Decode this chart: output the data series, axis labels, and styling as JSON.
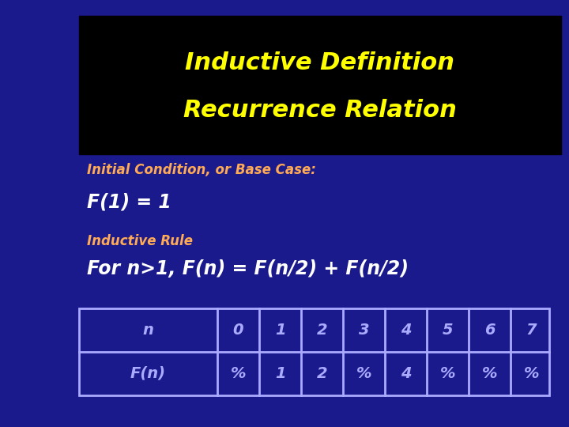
{
  "bg_color": "#1a1a8c",
  "title_bg_color": "#000000",
  "title_text_line1": "Inductive Definition",
  "title_text_line2": "Recurrence Relation",
  "title_color": "#ffff00",
  "subtitle1": "Initial Condition, or Base Case:",
  "subtitle1_color": "#ffaa55",
  "line1": "F(1) = 1",
  "line1_color": "#ffffff",
  "subtitle2": "Inductive Rule",
  "subtitle2_color": "#ffaa55",
  "line2": "For n>1, F(n) = F(n/2) + F(n/2)",
  "line2_color": "#ffffff",
  "table_row1": [
    "n",
    "0",
    "1",
    "2",
    "3",
    "4",
    "5",
    "6",
    "7"
  ],
  "table_row2": [
    "F(n)",
    "%",
    "1",
    "2",
    "%",
    "4",
    "%",
    "%",
    "%"
  ],
  "table_border_color": "#aaaaff",
  "table_bg": "#1a1a8c",
  "fig_width": 7.2,
  "fig_height": 5.4,
  "dpi": 100
}
